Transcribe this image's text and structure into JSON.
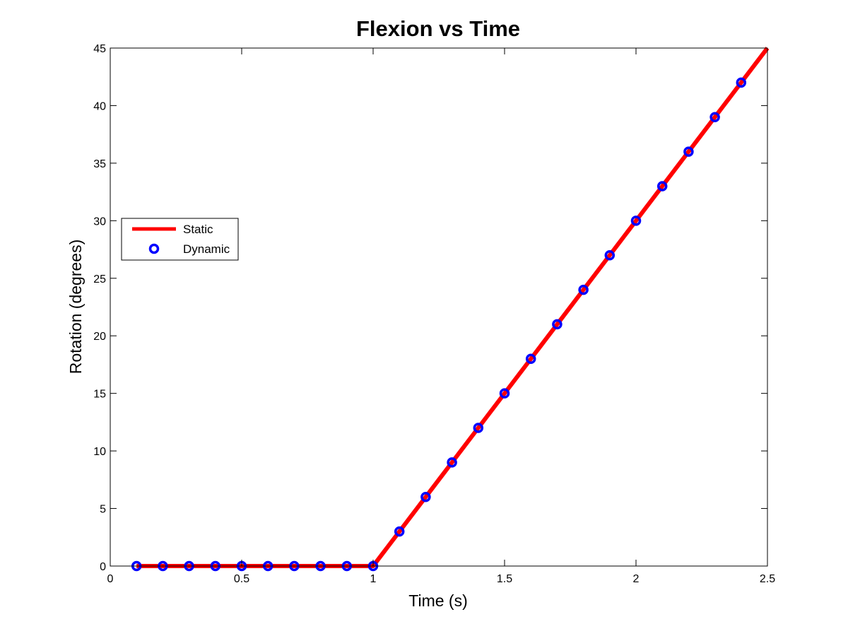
{
  "chart_data": {
    "type": "line",
    "title": "Flexion vs Time",
    "xlabel": "Time (s)",
    "ylabel": "Rotation (degrees)",
    "xlim": [
      0,
      2.5
    ],
    "ylim": [
      0,
      45
    ],
    "xticks": [
      0,
      0.5,
      1,
      1.5,
      2,
      2.5
    ],
    "xtick_labels": [
      "0",
      "0.5",
      "1",
      "1.5",
      "2",
      "2.5"
    ],
    "yticks": [
      0,
      5,
      10,
      15,
      20,
      25,
      30,
      35,
      40,
      45
    ],
    "ytick_labels": [
      "0",
      "5",
      "10",
      "15",
      "20",
      "25",
      "30",
      "35",
      "40",
      "45"
    ],
    "grid": false,
    "legend_position": "left",
    "series": [
      {
        "name": "Static",
        "style": "line",
        "color": "#ff0000",
        "x": [
          0.1,
          1.0,
          2.5
        ],
        "y": [
          0,
          0,
          45
        ]
      },
      {
        "name": "Dynamic",
        "style": "marker-circle",
        "color": "#0000ff",
        "x": [
          0.1,
          0.2,
          0.3,
          0.4,
          0.5,
          0.6,
          0.7,
          0.8,
          0.9,
          1.0,
          1.1,
          1.2,
          1.3,
          1.4,
          1.5,
          1.6,
          1.7,
          1.8,
          1.9,
          2.0,
          2.1,
          2.2,
          2.3,
          2.4
        ],
        "y": [
          0,
          0,
          0,
          0,
          0,
          0,
          0,
          0,
          0,
          0,
          3,
          6,
          9,
          12,
          15,
          18,
          21,
          24,
          27,
          30,
          33,
          36,
          39,
          42
        ]
      }
    ]
  }
}
